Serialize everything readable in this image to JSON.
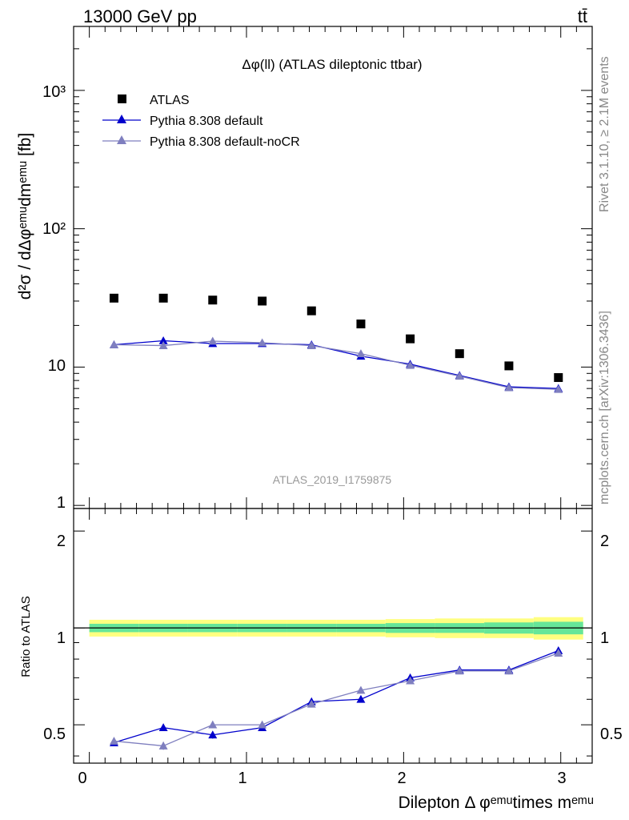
{
  "header": {
    "energy_label": "13000 GeV pp",
    "process_label": "tt̄"
  },
  "side_text": {
    "rivet": "Rivet 3.1.10, ≥ 2.1M events",
    "source": "mcplots.cern.ch [arXiv:1306.3436]"
  },
  "chart_data": [
    {
      "type": "scatter",
      "title": "Δφ(ll) (ATLAS dileptonic ttbar)",
      "watermark": "ATLAS_2019_I1759875",
      "ylabel": "d²σ / dΔφᵉᵐᵘdmᵉᵐᵘ [fb]",
      "xlabel": "Dilepton Δ φᵉᵐᵘtimes mᵉᵐᵘ",
      "yscale": "log",
      "xlim": [
        -0.1,
        3.2
      ],
      "ylim": [
        0.95,
        2900
      ],
      "y_tick_labels": [
        "1",
        "10",
        "10²",
        "10³"
      ],
      "x": [
        0.157,
        0.471,
        0.785,
        1.1,
        1.414,
        1.728,
        2.042,
        2.356,
        2.67,
        2.985
      ],
      "series": [
        {
          "name": "ATLAS",
          "color": "#000000",
          "marker": "square",
          "values": [
            31.5,
            31.5,
            30.5,
            30.0,
            25.5,
            20.5,
            16.0,
            12.5,
            10.2,
            8.4
          ]
        },
        {
          "name": "Pythia 8.308 default",
          "color": "#0000cc",
          "marker": "triangle",
          "values": [
            14.5,
            15.5,
            14.8,
            14.8,
            14.5,
            12.0,
            10.5,
            8.7,
            7.2,
            7.0
          ]
        },
        {
          "name": "Pythia 8.308 default-noCR",
          "color": "#7f7fbf",
          "marker": "triangle",
          "values": [
            14.5,
            14.3,
            15.4,
            15.0,
            14.3,
            12.5,
            10.3,
            8.6,
            7.1,
            6.9
          ]
        }
      ],
      "legend": "top-left"
    },
    {
      "type": "scatter",
      "ylabel": "Ratio to ATLAS",
      "ylim": [
        0.38,
        2.35
      ],
      "yscale": "log",
      "y_tick_labels": [
        "0.5",
        "1",
        "2"
      ],
      "x_tick_labels": [
        "0",
        "1",
        "2",
        "3"
      ],
      "reference_line": 1,
      "band_colors": {
        "inner": "#66e699",
        "outer": "#ffff80"
      },
      "band_half_width": [
        [
          0.03,
          0.06
        ],
        [
          0.03,
          0.06
        ],
        [
          0.03,
          0.06
        ],
        [
          0.03,
          0.06
        ],
        [
          0.03,
          0.06
        ],
        [
          0.03,
          0.06
        ],
        [
          0.035,
          0.065
        ],
        [
          0.035,
          0.07
        ],
        [
          0.04,
          0.07
        ],
        [
          0.045,
          0.08
        ]
      ],
      "series": [
        {
          "name": "Pythia 8.308 default",
          "color": "#0000cc",
          "values": [
            0.44,
            0.49,
            0.465,
            0.49,
            0.59,
            0.6,
            0.7,
            0.74,
            0.74,
            0.85
          ],
          "errors": [
            0.01,
            0.012,
            0.012,
            0.012,
            0.014,
            0.014,
            0.016,
            0.017,
            0.018,
            0.02
          ]
        },
        {
          "name": "Pythia 8.308 default-noCR",
          "color": "#7f7fbf",
          "values": [
            0.445,
            0.43,
            0.5,
            0.5,
            0.58,
            0.64,
            0.685,
            0.735,
            0.735,
            0.835
          ],
          "errors": [
            0.01,
            0.012,
            0.012,
            0.012,
            0.014,
            0.014,
            0.016,
            0.017,
            0.018,
            0.02
          ]
        }
      ]
    }
  ]
}
